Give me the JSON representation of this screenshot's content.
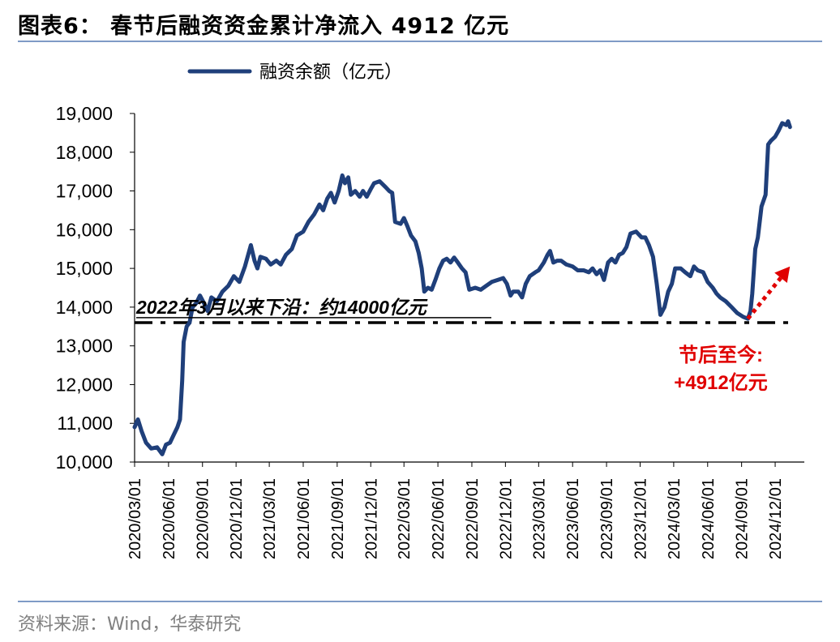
{
  "figure": {
    "title": "图表6： 春节后融资资金累计净流入 4912 亿元",
    "source": "资料来源：Wind，华泰研究"
  },
  "colors": {
    "series": "#1f3f7a",
    "annotation": "#e00000",
    "support_line": "#000000"
  },
  "chart_data": {
    "type": "line",
    "title": "",
    "xlabel": "",
    "ylabel": "",
    "ylim": [
      10000,
      19000
    ],
    "yticks": [
      10000,
      11000,
      12000,
      13000,
      14000,
      15000,
      16000,
      17000,
      18000,
      19000
    ],
    "ytick_labels": [
      "10,000",
      "11,000",
      "12,000",
      "13,000",
      "14,000",
      "15,000",
      "16,000",
      "17,000",
      "18,000",
      "19,000"
    ],
    "xlim": [
      "2020-03-01",
      "2025-02-18"
    ],
    "xtick_labels": [
      "2020/03/01",
      "2020/06/01",
      "2020/09/01",
      "2020/12/01",
      "2021/03/01",
      "2021/06/01",
      "2021/09/01",
      "2021/12/01",
      "2022/03/01",
      "2022/06/01",
      "2022/09/01",
      "2022/12/01",
      "2023/03/01",
      "2023/06/01",
      "2023/09/01",
      "2023/12/01",
      "2024/03/01",
      "2024/06/01",
      "2024/09/01",
      "2024/12/01"
    ],
    "legend": {
      "position": "top-center",
      "entries": [
        "融资余额（亿元）"
      ]
    },
    "grid": false,
    "series": [
      {
        "name": "融资余额（亿元）",
        "points": [
          [
            "2020-03-01",
            10900
          ],
          [
            "2020-03-10",
            11100
          ],
          [
            "2020-03-20",
            10800
          ],
          [
            "2020-04-01",
            10500
          ],
          [
            "2020-04-15",
            10350
          ],
          [
            "2020-05-01",
            10380
          ],
          [
            "2020-05-15",
            10200
          ],
          [
            "2020-05-25",
            10450
          ],
          [
            "2020-06-05",
            10500
          ],
          [
            "2020-06-15",
            10700
          ],
          [
            "2020-06-25",
            10900
          ],
          [
            "2020-07-02",
            11100
          ],
          [
            "2020-07-08",
            12100
          ],
          [
            "2020-07-12",
            13100
          ],
          [
            "2020-07-20",
            13500
          ],
          [
            "2020-07-28",
            13600
          ],
          [
            "2020-08-05",
            14000
          ],
          [
            "2020-08-15",
            14100
          ],
          [
            "2020-08-25",
            14300
          ],
          [
            "2020-09-05",
            14100
          ],
          [
            "2020-09-15",
            13900
          ],
          [
            "2020-09-25",
            14250
          ],
          [
            "2020-10-10",
            14150
          ],
          [
            "2020-10-25",
            14400
          ],
          [
            "2020-11-10",
            14550
          ],
          [
            "2020-11-25",
            14800
          ],
          [
            "2020-12-10",
            14650
          ],
          [
            "2020-12-25",
            15050
          ],
          [
            "2021-01-10",
            15600
          ],
          [
            "2021-01-20",
            15200
          ],
          [
            "2021-01-28",
            15000
          ],
          [
            "2021-02-05",
            15300
          ],
          [
            "2021-02-20",
            15250
          ],
          [
            "2021-03-05",
            15100
          ],
          [
            "2021-03-20",
            15200
          ],
          [
            "2021-04-01",
            15100
          ],
          [
            "2021-04-15",
            15350
          ],
          [
            "2021-05-01",
            15500
          ],
          [
            "2021-05-15",
            15850
          ],
          [
            "2021-06-01",
            15950
          ],
          [
            "2021-06-15",
            16200
          ],
          [
            "2021-07-01",
            16400
          ],
          [
            "2021-07-15",
            16650
          ],
          [
            "2021-07-25",
            16500
          ],
          [
            "2021-08-05",
            16800
          ],
          [
            "2021-08-15",
            16950
          ],
          [
            "2021-08-25",
            16700
          ],
          [
            "2021-09-05",
            17000
          ],
          [
            "2021-09-15",
            17400
          ],
          [
            "2021-09-22",
            17200
          ],
          [
            "2021-10-01",
            17350
          ],
          [
            "2021-10-08",
            16900
          ],
          [
            "2021-10-20",
            17000
          ],
          [
            "2021-11-01",
            16850
          ],
          [
            "2021-11-10",
            17000
          ],
          [
            "2021-11-20",
            16850
          ],
          [
            "2021-12-01",
            17050
          ],
          [
            "2021-12-10",
            17200
          ],
          [
            "2021-12-25",
            17250
          ],
          [
            "2022-01-10",
            17100
          ],
          [
            "2022-01-20",
            17000
          ],
          [
            "2022-01-28",
            16950
          ],
          [
            "2022-02-05",
            16200
          ],
          [
            "2022-02-20",
            16150
          ],
          [
            "2022-03-01",
            16300
          ],
          [
            "2022-03-10",
            16100
          ],
          [
            "2022-03-20",
            15850
          ],
          [
            "2022-04-01",
            15700
          ],
          [
            "2022-04-10",
            15400
          ],
          [
            "2022-04-18",
            15000
          ],
          [
            "2022-04-25",
            14400
          ],
          [
            "2022-05-05",
            14500
          ],
          [
            "2022-05-15",
            14450
          ],
          [
            "2022-05-25",
            14700
          ],
          [
            "2022-06-05",
            15000
          ],
          [
            "2022-06-15",
            15200
          ],
          [
            "2022-06-25",
            15250
          ],
          [
            "2022-07-05",
            15150
          ],
          [
            "2022-07-15",
            15280
          ],
          [
            "2022-07-25",
            15150
          ],
          [
            "2022-08-05",
            15000
          ],
          [
            "2022-08-15",
            14900
          ],
          [
            "2022-08-25",
            14450
          ],
          [
            "2022-09-10",
            14500
          ],
          [
            "2022-09-25",
            14450
          ],
          [
            "2022-10-10",
            14550
          ],
          [
            "2022-10-25",
            14650
          ],
          [
            "2022-11-10",
            14700
          ],
          [
            "2022-11-25",
            14750
          ],
          [
            "2022-12-05",
            14600
          ],
          [
            "2022-12-15",
            14300
          ],
          [
            "2022-12-22",
            14400
          ],
          [
            "2023-01-05",
            14400
          ],
          [
            "2023-01-15",
            14250
          ],
          [
            "2023-01-25",
            14600
          ],
          [
            "2023-02-05",
            14800
          ],
          [
            "2023-02-20",
            14900
          ],
          [
            "2023-03-01",
            14950
          ],
          [
            "2023-03-15",
            15150
          ],
          [
            "2023-03-25",
            15350
          ],
          [
            "2023-04-01",
            15450
          ],
          [
            "2023-04-10",
            15150
          ],
          [
            "2023-04-20",
            15200
          ],
          [
            "2023-05-01",
            15200
          ],
          [
            "2023-05-15",
            15100
          ],
          [
            "2023-06-01",
            15050
          ],
          [
            "2023-06-15",
            14950
          ],
          [
            "2023-07-01",
            14950
          ],
          [
            "2023-07-15",
            14900
          ],
          [
            "2023-07-25",
            15000
          ],
          [
            "2023-08-05",
            14850
          ],
          [
            "2023-08-15",
            14950
          ],
          [
            "2023-08-25",
            14700
          ],
          [
            "2023-09-05",
            15150
          ],
          [
            "2023-09-15",
            15250
          ],
          [
            "2023-09-25",
            15150
          ],
          [
            "2023-10-05",
            15350
          ],
          [
            "2023-10-15",
            15400
          ],
          [
            "2023-10-25",
            15550
          ],
          [
            "2023-11-05",
            15900
          ],
          [
            "2023-11-20",
            15950
          ],
          [
            "2023-12-05",
            15800
          ],
          [
            "2023-12-15",
            15800
          ],
          [
            "2023-12-25",
            15600
          ],
          [
            "2024-01-05",
            15300
          ],
          [
            "2024-01-15",
            14600
          ],
          [
            "2024-01-25",
            13800
          ],
          [
            "2024-02-05",
            14000
          ],
          [
            "2024-02-15",
            14400
          ],
          [
            "2024-02-25",
            14600
          ],
          [
            "2024-03-05",
            15000
          ],
          [
            "2024-03-20",
            15000
          ],
          [
            "2024-04-01",
            14900
          ],
          [
            "2024-04-15",
            14800
          ],
          [
            "2024-04-25",
            15050
          ],
          [
            "2024-05-05",
            14950
          ],
          [
            "2024-05-20",
            14900
          ],
          [
            "2024-06-01",
            14650
          ],
          [
            "2024-06-15",
            14500
          ],
          [
            "2024-06-25",
            14350
          ],
          [
            "2024-07-05",
            14250
          ],
          [
            "2024-07-20",
            14150
          ],
          [
            "2024-08-05",
            14000
          ],
          [
            "2024-08-20",
            13850
          ],
          [
            "2024-09-05",
            13750
          ],
          [
            "2024-09-18",
            13700
          ],
          [
            "2024-09-25",
            13900
          ],
          [
            "2024-09-30",
            14350
          ],
          [
            "2024-10-08",
            15500
          ],
          [
            "2024-10-15",
            15800
          ],
          [
            "2024-10-25",
            16600
          ],
          [
            "2024-11-05",
            16900
          ],
          [
            "2024-11-12",
            18200
          ],
          [
            "2024-11-20",
            18300
          ],
          [
            "2024-12-01",
            18400
          ],
          [
            "2024-12-10",
            18550
          ],
          [
            "2024-12-20",
            18750
          ],
          [
            "2024-12-31",
            18700
          ],
          [
            "2025-01-05",
            18800
          ],
          [
            "2025-01-10",
            18650
          ]
        ]
      }
    ],
    "annotations": {
      "support_line": {
        "value": 13600,
        "label": "2022年3月以来下沿：约14000亿元"
      },
      "callout_line1": "节后至今:",
      "callout_line2": "+4912亿元",
      "arrow": {
        "from": [
          "2024-09-18",
          13700
        ],
        "to": [
          "2025-01-10",
          15050
        ]
      }
    }
  }
}
